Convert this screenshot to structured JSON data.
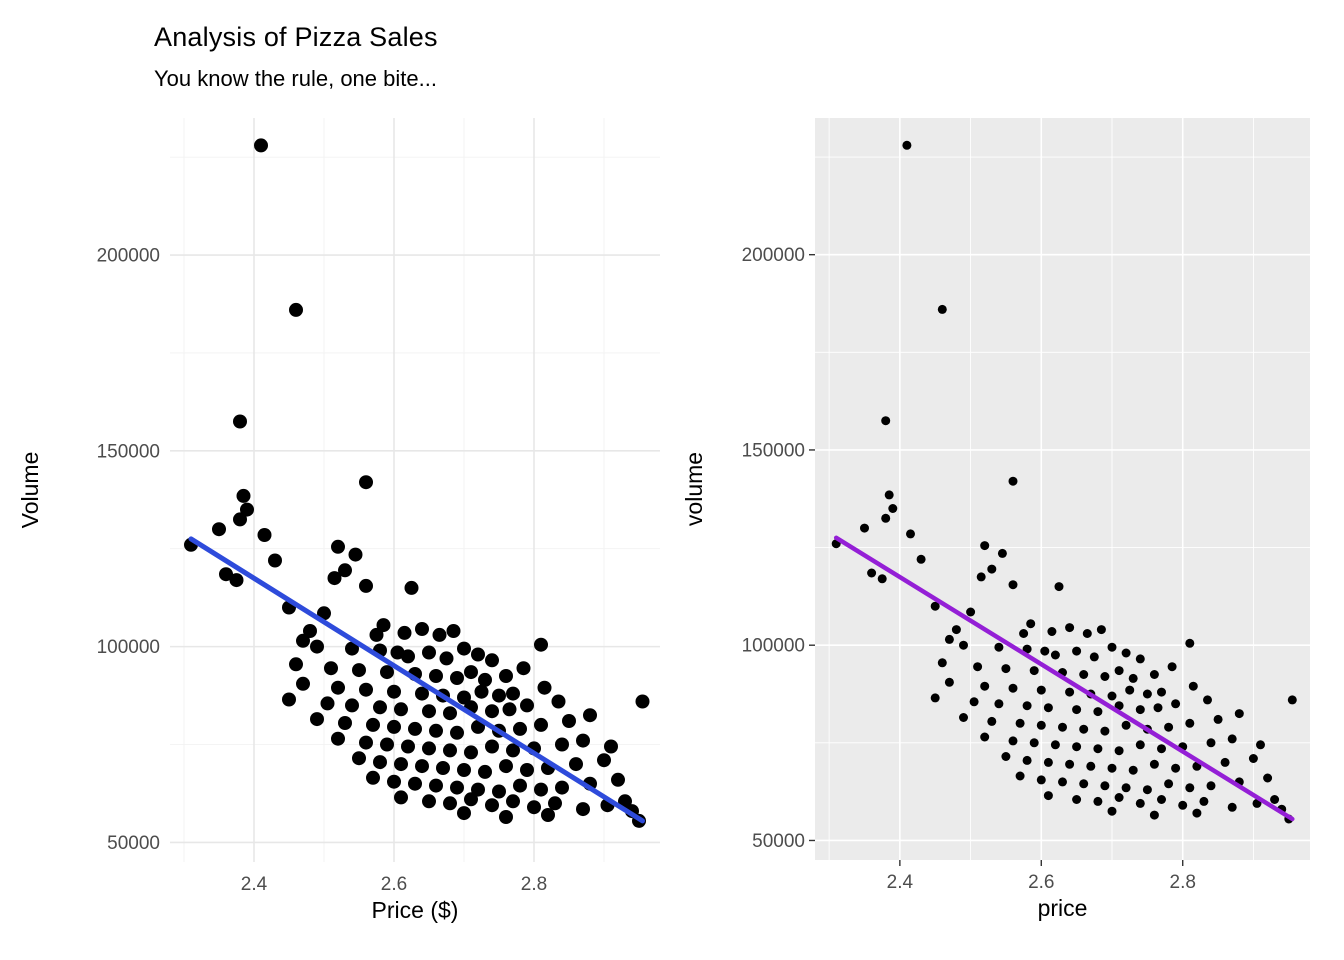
{
  "figure": {
    "title": "Analysis of Pizza Sales",
    "subtitle": "You know the rule, one bite...",
    "background": "#ffffff"
  },
  "chart_data": {
    "type": "scatter",
    "points": [
      [
        2.41,
        228000
      ],
      [
        2.46,
        186000
      ],
      [
        2.38,
        157500
      ],
      [
        2.56,
        142000
      ],
      [
        2.385,
        138500
      ],
      [
        2.39,
        135000
      ],
      [
        2.38,
        132500
      ],
      [
        2.35,
        130000
      ],
      [
        2.415,
        128500
      ],
      [
        2.31,
        126000
      ],
      [
        2.52,
        125500
      ],
      [
        2.545,
        123500
      ],
      [
        2.43,
        122000
      ],
      [
        2.53,
        119500
      ],
      [
        2.36,
        118500
      ],
      [
        2.375,
        117000
      ],
      [
        2.515,
        117500
      ],
      [
        2.56,
        115500
      ],
      [
        2.625,
        115000
      ],
      [
        2.45,
        110000
      ],
      [
        2.5,
        108500
      ],
      [
        2.585,
        105500
      ],
      [
        2.48,
        104000
      ],
      [
        2.575,
        103000
      ],
      [
        2.615,
        103500
      ],
      [
        2.64,
        104500
      ],
      [
        2.665,
        103000
      ],
      [
        2.685,
        104000
      ],
      [
        2.47,
        101500
      ],
      [
        2.49,
        100000
      ],
      [
        2.54,
        99500
      ],
      [
        2.58,
        99000
      ],
      [
        2.605,
        98500
      ],
      [
        2.62,
        97500
      ],
      [
        2.65,
        98500
      ],
      [
        2.675,
        97000
      ],
      [
        2.7,
        99500
      ],
      [
        2.72,
        98000
      ],
      [
        2.74,
        96500
      ],
      [
        2.81,
        100500
      ],
      [
        2.46,
        95500
      ],
      [
        2.51,
        94500
      ],
      [
        2.55,
        94000
      ],
      [
        2.59,
        93500
      ],
      [
        2.63,
        93000
      ],
      [
        2.66,
        92500
      ],
      [
        2.69,
        92000
      ],
      [
        2.71,
        93500
      ],
      [
        2.73,
        91500
      ],
      [
        2.76,
        92500
      ],
      [
        2.785,
        94500
      ],
      [
        2.47,
        90500
      ],
      [
        2.52,
        89500
      ],
      [
        2.56,
        89000
      ],
      [
        2.6,
        88500
      ],
      [
        2.64,
        88000
      ],
      [
        2.67,
        87500
      ],
      [
        2.7,
        87000
      ],
      [
        2.725,
        88500
      ],
      [
        2.75,
        87500
      ],
      [
        2.77,
        88000
      ],
      [
        2.815,
        89500
      ],
      [
        2.45,
        86500
      ],
      [
        2.505,
        85500
      ],
      [
        2.54,
        85000
      ],
      [
        2.58,
        84500
      ],
      [
        2.61,
        84000
      ],
      [
        2.65,
        83500
      ],
      [
        2.68,
        83000
      ],
      [
        2.71,
        84500
      ],
      [
        2.74,
        83500
      ],
      [
        2.765,
        84000
      ],
      [
        2.79,
        85000
      ],
      [
        2.835,
        86000
      ],
      [
        2.955,
        86000
      ],
      [
        2.49,
        81500
      ],
      [
        2.53,
        80500
      ],
      [
        2.57,
        80000
      ],
      [
        2.6,
        79500
      ],
      [
        2.63,
        79000
      ],
      [
        2.66,
        78500
      ],
      [
        2.69,
        78000
      ],
      [
        2.72,
        79500
      ],
      [
        2.75,
        78500
      ],
      [
        2.78,
        79000
      ],
      [
        2.81,
        80000
      ],
      [
        2.85,
        81000
      ],
      [
        2.88,
        82500
      ],
      [
        2.52,
        76500
      ],
      [
        2.56,
        75500
      ],
      [
        2.59,
        75000
      ],
      [
        2.62,
        74500
      ],
      [
        2.65,
        74000
      ],
      [
        2.68,
        73500
      ],
      [
        2.71,
        73000
      ],
      [
        2.74,
        74500
      ],
      [
        2.77,
        73500
      ],
      [
        2.8,
        74000
      ],
      [
        2.84,
        75000
      ],
      [
        2.87,
        76000
      ],
      [
        2.91,
        74500
      ],
      [
        2.55,
        71500
      ],
      [
        2.58,
        70500
      ],
      [
        2.61,
        70000
      ],
      [
        2.64,
        69500
      ],
      [
        2.67,
        69000
      ],
      [
        2.7,
        68500
      ],
      [
        2.73,
        68000
      ],
      [
        2.76,
        69500
      ],
      [
        2.79,
        68500
      ],
      [
        2.82,
        69000
      ],
      [
        2.86,
        70000
      ],
      [
        2.9,
        71000
      ],
      [
        2.57,
        66500
      ],
      [
        2.6,
        65500
      ],
      [
        2.63,
        65000
      ],
      [
        2.66,
        64500
      ],
      [
        2.69,
        64000
      ],
      [
        2.72,
        63500
      ],
      [
        2.75,
        63000
      ],
      [
        2.78,
        64500
      ],
      [
        2.81,
        63500
      ],
      [
        2.84,
        64000
      ],
      [
        2.88,
        65000
      ],
      [
        2.92,
        66000
      ],
      [
        2.61,
        61500
      ],
      [
        2.65,
        60500
      ],
      [
        2.68,
        60000
      ],
      [
        2.71,
        61000
      ],
      [
        2.74,
        59500
      ],
      [
        2.77,
        60500
      ],
      [
        2.8,
        59000
      ],
      [
        2.83,
        60000
      ],
      [
        2.87,
        58500
      ],
      [
        2.905,
        59500
      ],
      [
        2.93,
        60500
      ],
      [
        2.94,
        58000
      ],
      [
        2.7,
        57500
      ],
      [
        2.76,
        56500
      ],
      [
        2.82,
        57000
      ],
      [
        2.95,
        55500
      ]
    ],
    "trend_line": {
      "x": [
        2.31,
        2.955
      ],
      "y": [
        127500,
        55500
      ]
    },
    "panels": [
      {
        "xlabel": "Price ($)",
        "ylabel": "Volume",
        "theme": "minimal",
        "xlim": [
          2.28,
          2.98
        ],
        "ylim": [
          45000,
          235000
        ],
        "xticks": [
          {
            "v": 2.4,
            "label": "2.4"
          },
          {
            "v": 2.6,
            "label": "2.6"
          },
          {
            "v": 2.8,
            "label": "2.8"
          }
        ],
        "yticks": [
          {
            "v": 50000,
            "label": "50000"
          },
          {
            "v": 100000,
            "label": "100000"
          },
          {
            "v": 150000,
            "label": "150000"
          },
          {
            "v": 200000,
            "label": "200000"
          }
        ],
        "minor_xticks": [
          2.3,
          2.5,
          2.7,
          2.9
        ],
        "minor_yticks": [
          75000,
          125000,
          175000,
          225000
        ],
        "colors": {
          "panel_bg": "#ffffff",
          "grid_major": "#e7e7e7",
          "grid_minor": "#f2f2f2",
          "point": "#000000",
          "line": "#2e4bdb",
          "tick_text": "#4d4d4d",
          "tick_mark": "#333333",
          "axis_title": "#000000"
        },
        "point_radius": 7,
        "line_width": 5,
        "tick_marks": false
      },
      {
        "xlabel": "price",
        "ylabel": "volume",
        "theme": "gray",
        "xlim": [
          2.28,
          2.98
        ],
        "ylim": [
          45000,
          235000
        ],
        "xticks": [
          {
            "v": 2.4,
            "label": "2.4"
          },
          {
            "v": 2.6,
            "label": "2.6"
          },
          {
            "v": 2.8,
            "label": "2.8"
          }
        ],
        "yticks": [
          {
            "v": 50000,
            "label": "50000"
          },
          {
            "v": 100000,
            "label": "100000"
          },
          {
            "v": 150000,
            "label": "150000"
          },
          {
            "v": 200000,
            "label": "200000"
          }
        ],
        "minor_xticks": [
          2.3,
          2.5,
          2.7,
          2.9
        ],
        "minor_yticks": [
          75000,
          125000,
          175000,
          225000
        ],
        "colors": {
          "panel_bg": "#ebebeb",
          "grid_major": "#ffffff",
          "grid_minor": "#ffffff",
          "point": "#000000",
          "line": "#941fd6",
          "tick_text": "#4d4d4d",
          "tick_mark": "#333333",
          "axis_title": "#000000"
        },
        "point_radius": 4.5,
        "line_width": 4.5,
        "tick_marks": true
      }
    ]
  }
}
